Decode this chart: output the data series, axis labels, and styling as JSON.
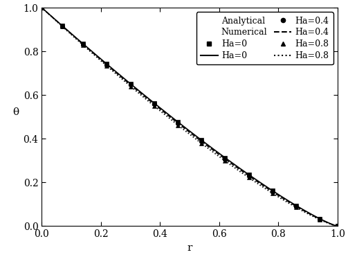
{
  "xlabel": "r",
  "ylabel": "θ",
  "xlim": [
    0.0,
    1.0
  ],
  "ylim": [
    0.0,
    1.0
  ],
  "xticks": [
    0.0,
    0.2,
    0.4,
    0.6,
    0.8,
    1.0
  ],
  "yticks": [
    0.0,
    0.2,
    0.4,
    0.6,
    0.8,
    1.0
  ],
  "line_color": "black",
  "marker_color": "black",
  "background_color": "#ffffff",
  "legend_analytical": "Analytical",
  "legend_numerical": "Numerical",
  "Ha_labels": [
    "Ha=0",
    "Ha=0.4",
    "Ha=0.8"
  ],
  "Ha_values": [
    0.0,
    0.4,
    0.8
  ],
  "analytical_markers": [
    "s",
    "o",
    "^"
  ],
  "numerical_linestyles": [
    "-",
    "--",
    ":"
  ],
  "r_markers": [
    0.0,
    0.07,
    0.14,
    0.22,
    0.3,
    0.38,
    0.46,
    0.54,
    0.62,
    0.7,
    0.78,
    0.86,
    0.94,
    1.0
  ],
  "figsize": [
    5.03,
    3.71
  ],
  "dpi": 100,
  "fontsize_label": 11,
  "fontsize_tick": 10,
  "fontsize_legend": 9,
  "linewidth": 1.2,
  "markersize": 4.5
}
